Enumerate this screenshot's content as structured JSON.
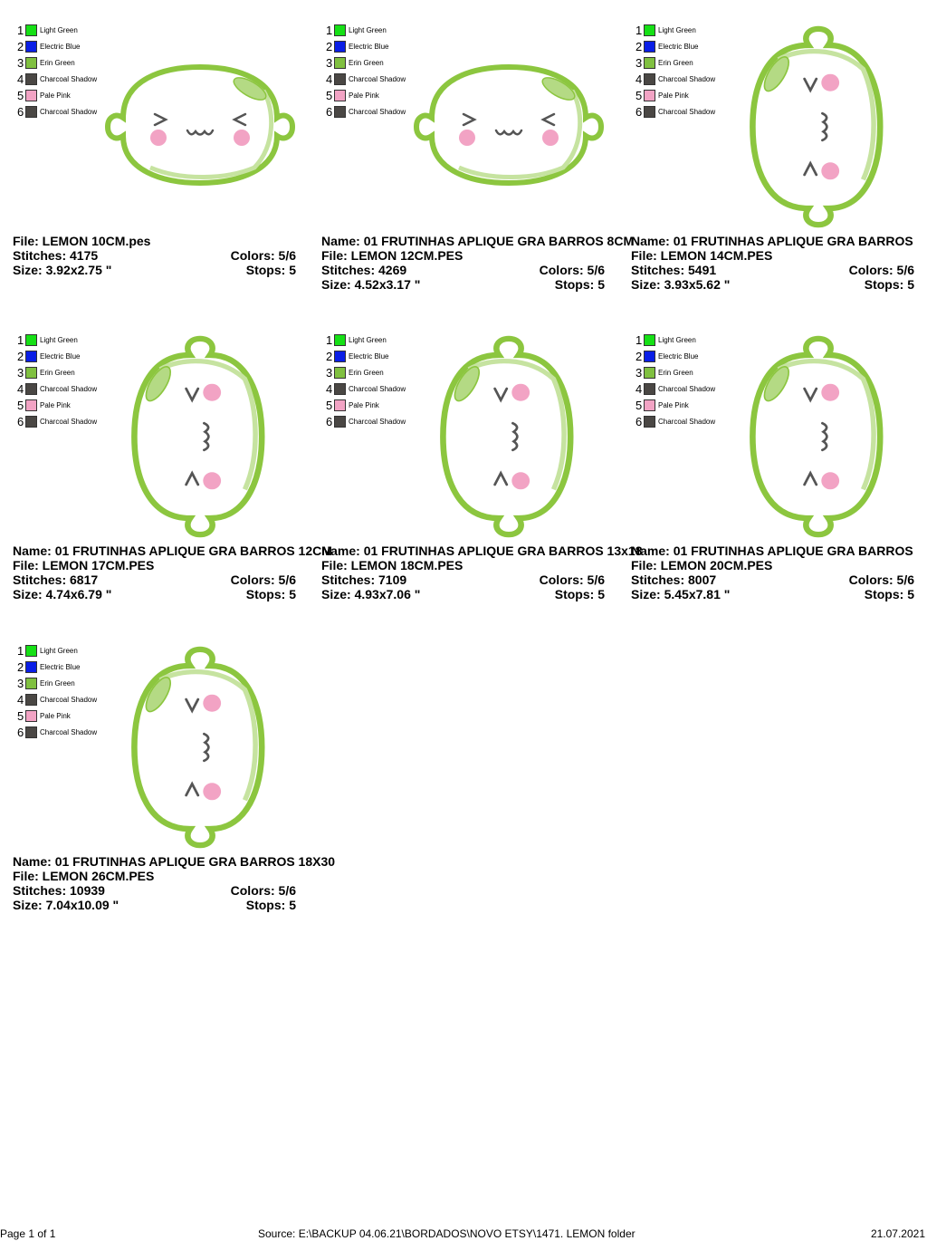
{
  "threads": [
    {
      "number": 1,
      "name": "Light Green",
      "color": "#16e016"
    },
    {
      "number": 2,
      "name": "Electric Blue",
      "color": "#0a1ee6"
    },
    {
      "number": 3,
      "name": "Erin Green",
      "color": "#80c040"
    },
    {
      "number": 4,
      "name": "Charcoal Shadow",
      "color": "#4a4744"
    },
    {
      "number": 5,
      "name": "Pale Pink",
      "color": "#f2a3c4"
    },
    {
      "number": 6,
      "name": "Charcoal Shadow",
      "color": "#4a4744"
    }
  ],
  "labels": {
    "name": "Name:",
    "file": "File:",
    "stitches": "Stitches:",
    "colors": "Colors:",
    "size": "Size:",
    "stops": "Stops:"
  },
  "designs": [
    {
      "orientation": "horizontal",
      "file": "LEMON 10CM.pes",
      "stitches": 4175,
      "colors": "5/6",
      "size": "3.92x2.75 \"",
      "stops": 5
    },
    {
      "orientation": "horizontal",
      "name": "01 FRUTINHAS APLIQUE GRA BARROS 8CM",
      "file": "LEMON 12CM.PES",
      "stitches": 4269,
      "colors": "5/6",
      "size": "4.52x3.17 \"",
      "stops": 5
    },
    {
      "orientation": "vertical",
      "name": "01 FRUTINHAS APLIQUE GRA BARROS",
      "file": "LEMON 14CM.PES",
      "stitches": 5491,
      "colors": "5/6",
      "size": "3.93x5.62 \"",
      "stops": 5
    },
    {
      "orientation": "vertical",
      "name": "01 FRUTINHAS APLIQUE GRA BARROS 12CM",
      "file": "LEMON 17CM.PES",
      "stitches": 6817,
      "colors": "5/6",
      "size": "4.74x6.79 \"",
      "stops": 5
    },
    {
      "orientation": "vertical",
      "name": "01 FRUTINHAS APLIQUE GRA BARROS 13x18",
      "file": "LEMON 18CM.PES",
      "stitches": 7109,
      "colors": "5/6",
      "size": "4.93x7.06 \"",
      "stops": 5
    },
    {
      "orientation": "vertical",
      "name": "01 FRUTINHAS APLIQUE GRA BARROS",
      "file": "LEMON 20CM.PES",
      "stitches": 8007,
      "colors": "5/6",
      "size": "5.45x7.81 \"",
      "stops": 5
    },
    {
      "orientation": "vertical",
      "name": "01 FRUTINHAS APLIQUE GRA BARROS 18X30",
      "file": "LEMON 26CM.PES",
      "stitches": 10939,
      "colors": "5/6",
      "size": "7.04x10.09 \"",
      "stops": 5
    }
  ],
  "footer": {
    "page": "Page 1 of 1",
    "source": "Source: E:\\BACKUP 04.06.21\\BORDADOS\\NOVO ETSY\\1471. LEMON folder",
    "date": "21.07.2021"
  }
}
